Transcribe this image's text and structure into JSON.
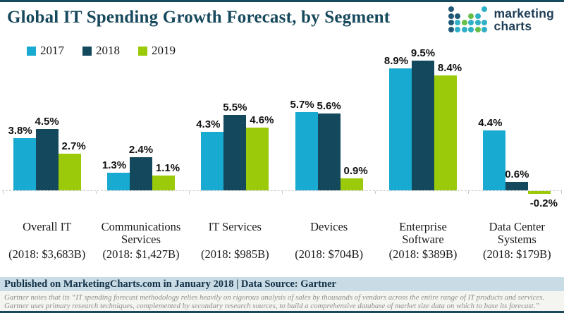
{
  "header": {
    "title": "Global IT Spending Growth Forecast, by Segment",
    "logo": {
      "line1": "marketing",
      "line2": "charts"
    }
  },
  "footer": {
    "attribution": "Published on MarketingCharts.com in January 2018 | Data Source: Gartner",
    "note_line1": "Gartner notes that its “IT spending forecast methodology relies heavily on rigorous analysis of sales by thousands of vendors across the entire range of IT products and services.",
    "note_line2": "Gartner uses primary research techniques, complemented by secondary research sources, to build a comprehensive database of market size data on which to base its forecast.”"
  },
  "colors": {
    "accent_dark": "#17495d",
    "bar_2017": "#18aad1",
    "bar_2018": "#14485d",
    "bar_2019": "#9bca0b",
    "footer_band_bg": "#c9dbe5",
    "footnote_bg": "#f4f4f1",
    "logo_dot_navy": "#1f5876",
    "logo_dot_cyan": "#2fb0c7",
    "logo_dot_green": "#68be4a"
  },
  "logo_icon": {
    "name": "dot-matrix-logo-icon",
    "pattern": [
      "n....c",
      "nn.gc.",
      "ncgccc",
      "ncccgc"
    ],
    "palette": {
      "n": "#1f5876",
      "c": "#2fb0c7",
      "g": "#68be4a"
    }
  },
  "chart_data": {
    "type": "bar",
    "title": "Global IT Spending Growth Forecast, by Segment",
    "categories": [
      "Overall IT",
      "Communications Services",
      "IT Services",
      "Devices",
      "Enterprise Software",
      "Data Center Systems"
    ],
    "category_sublabels": [
      "(2018: $3,683B)",
      "(2018: $1,427B)",
      "(2018: $985B)",
      "(2018: $704B)",
      "(2018: $389B)",
      "(2018: $179B)"
    ],
    "series": [
      {
        "name": "2017",
        "color": "#18aad1",
        "values": [
          3.8,
          1.3,
          4.3,
          5.7,
          8.9,
          4.4
        ]
      },
      {
        "name": "2018",
        "color": "#14485d",
        "values": [
          4.5,
          2.4,
          5.5,
          5.6,
          9.5,
          0.6
        ]
      },
      {
        "name": "2019",
        "color": "#9bca0b",
        "values": [
          2.7,
          1.1,
          4.6,
          0.9,
          8.4,
          -0.2
        ]
      }
    ],
    "value_suffix": "%",
    "xlabel": "",
    "ylabel": "",
    "ylim": [
      -0.5,
      10
    ],
    "grid": false,
    "axis_style": "dashed-baseline-with-ticks",
    "legend_position": "top-left"
  }
}
